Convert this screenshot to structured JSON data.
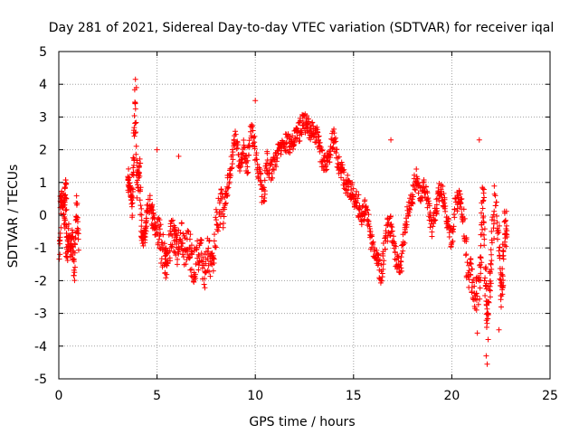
{
  "chart_data": {
    "type": "scatter",
    "title": "Day 281 of 2021, Sidereal Day-to-day VTEC variation (SDTVAR) for receiver iqal",
    "xlabel": "GPS time / hours",
    "ylabel": "SDTVAR / TECUs",
    "xlim": [
      0,
      25
    ],
    "ylim": [
      -5,
      5
    ],
    "xticks": [
      "0",
      "5",
      "10",
      "15",
      "20",
      "25"
    ],
    "yticks": [
      "5",
      "4",
      "3",
      "2",
      "1",
      "0",
      "-1",
      "-2",
      "-3",
      "-4",
      "-5"
    ],
    "grid": true,
    "marker": "+",
    "color": "#ff0000",
    "series": [
      {
        "name": "SDTVAR",
        "trace": [
          [
            0.0,
            -1.6
          ],
          [
            0.1,
            0.3
          ],
          [
            0.2,
            0.6
          ],
          [
            0.3,
            -0.2
          ],
          [
            0.35,
            1.2
          ],
          [
            0.4,
            -1.4
          ],
          [
            0.5,
            -0.5
          ],
          [
            0.6,
            -1.0
          ],
          [
            0.7,
            -0.6
          ],
          [
            0.8,
            -1.8
          ],
          [
            0.9,
            0.5
          ],
          [
            1.0,
            -1.0
          ],
          [
            3.5,
            1.3
          ],
          [
            3.6,
            0.8
          ],
          [
            3.7,
            0.2
          ],
          [
            3.8,
            1.4
          ],
          [
            3.9,
            3.6
          ],
          [
            4.0,
            0.6
          ],
          [
            4.1,
            1.6
          ],
          [
            4.2,
            -0.4
          ],
          [
            4.3,
            -0.8
          ],
          [
            4.4,
            -0.5
          ],
          [
            4.5,
            0.2
          ],
          [
            4.7,
            0.4
          ],
          [
            4.8,
            -0.2
          ],
          [
            5.0,
            -0.4
          ],
          [
            5.2,
            -0.9
          ],
          [
            5.4,
            -1.3
          ],
          [
            5.5,
            -1.7
          ],
          [
            5.7,
            -0.4
          ],
          [
            5.9,
            -0.6
          ],
          [
            6.0,
            -1.1
          ],
          [
            6.2,
            -0.4
          ],
          [
            6.4,
            -1.2
          ],
          [
            6.6,
            -0.8
          ],
          [
            6.8,
            -1.6
          ],
          [
            7.0,
            -1.4
          ],
          [
            7.2,
            -0.9
          ],
          [
            7.4,
            -1.8
          ],
          [
            7.6,
            -1.2
          ],
          [
            7.8,
            -1.5
          ],
          [
            8.0,
            -0.3
          ],
          [
            8.2,
            0.3
          ],
          [
            8.4,
            0.1
          ],
          [
            8.6,
            0.9
          ],
          [
            8.8,
            1.6
          ],
          [
            9.0,
            2.4
          ],
          [
            9.2,
            1.3
          ],
          [
            9.4,
            2.0
          ],
          [
            9.6,
            1.5
          ],
          [
            9.8,
            2.7
          ],
          [
            10.0,
            1.9
          ],
          [
            10.2,
            1.2
          ],
          [
            10.4,
            0.5
          ],
          [
            10.6,
            1.7
          ],
          [
            10.8,
            1.3
          ],
          [
            11.0,
            1.6
          ],
          [
            11.2,
            2.0
          ],
          [
            11.4,
            2.1
          ],
          [
            11.6,
            2.2
          ],
          [
            11.8,
            2.2
          ],
          [
            12.0,
            2.3
          ],
          [
            12.2,
            2.5
          ],
          [
            12.4,
            2.8
          ],
          [
            12.6,
            2.8
          ],
          [
            12.8,
            2.6
          ],
          [
            13.0,
            2.5
          ],
          [
            13.2,
            2.3
          ],
          [
            13.4,
            1.7
          ],
          [
            13.6,
            1.6
          ],
          [
            13.8,
            1.9
          ],
          [
            14.0,
            2.4
          ],
          [
            14.2,
            1.6
          ],
          [
            14.4,
            1.4
          ],
          [
            14.6,
            1.0
          ],
          [
            14.8,
            0.8
          ],
          [
            15.0,
            0.6
          ],
          [
            15.2,
            0.4
          ],
          [
            15.4,
            -0.1
          ],
          [
            15.6,
            0.3
          ],
          [
            15.8,
            -0.5
          ],
          [
            16.0,
            -1.0
          ],
          [
            16.2,
            -1.3
          ],
          [
            16.4,
            -1.9
          ],
          [
            16.6,
            -0.9
          ],
          [
            16.8,
            -0.2
          ],
          [
            17.0,
            -0.6
          ],
          [
            17.2,
            -1.4
          ],
          [
            17.4,
            -1.6
          ],
          [
            17.6,
            -0.4
          ],
          [
            17.8,
            0.2
          ],
          [
            18.0,
            0.6
          ],
          [
            18.2,
            1.2
          ],
          [
            18.4,
            0.6
          ],
          [
            18.6,
            0.9
          ],
          [
            18.8,
            0.3
          ],
          [
            19.0,
            -0.4
          ],
          [
            19.2,
            0.3
          ],
          [
            19.4,
            0.9
          ],
          [
            19.6,
            0.4
          ],
          [
            19.8,
            -0.3
          ],
          [
            20.0,
            -0.8
          ],
          [
            20.2,
            0.4
          ],
          [
            20.4,
            0.5
          ],
          [
            20.6,
            -0.2
          ],
          [
            20.8,
            -1.6
          ],
          [
            21.0,
            -1.8
          ],
          [
            21.2,
            -2.6
          ],
          [
            21.4,
            -2.1
          ],
          [
            21.5,
            -0.8
          ],
          [
            21.6,
            0.9
          ],
          [
            21.7,
            -1.9
          ],
          [
            21.8,
            -3.1
          ],
          [
            21.9,
            -2.4
          ],
          [
            22.0,
            -1.3
          ],
          [
            22.2,
            0.5
          ],
          [
            22.4,
            -0.8
          ],
          [
            22.5,
            -2.4
          ],
          [
            22.6,
            -2.0
          ],
          [
            22.7,
            -0.2
          ],
          [
            22.8,
            -0.6
          ]
        ],
        "outliers": [
          [
            3.9,
            4.15
          ],
          [
            3.95,
            3.9
          ],
          [
            10.0,
            3.5
          ],
          [
            15.0,
            0.5
          ],
          [
            21.75,
            -4.3
          ],
          [
            21.8,
            -4.55
          ],
          [
            21.85,
            -3.8
          ],
          [
            21.4,
            2.3
          ],
          [
            16.9,
            2.3
          ],
          [
            5.0,
            2.0
          ],
          [
            6.1,
            1.8
          ],
          [
            21.3,
            -3.6
          ],
          [
            22.4,
            -3.5
          ]
        ]
      }
    ]
  }
}
